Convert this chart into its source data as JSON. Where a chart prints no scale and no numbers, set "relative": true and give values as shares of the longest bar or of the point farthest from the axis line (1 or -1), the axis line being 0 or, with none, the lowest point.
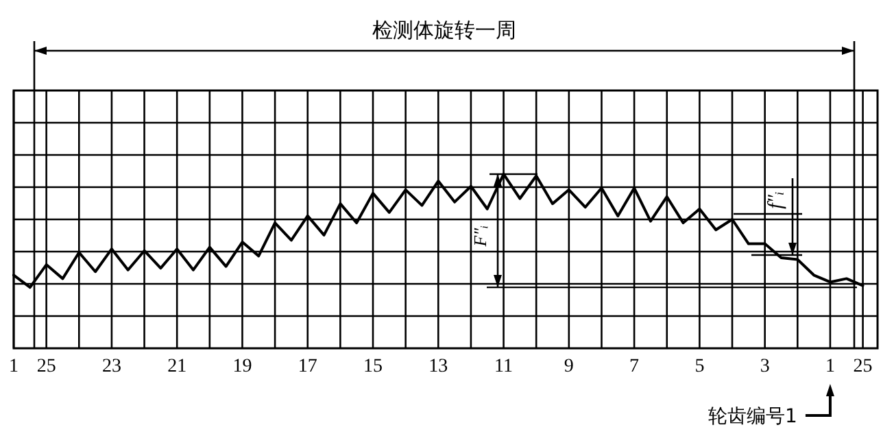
{
  "chart_data": {
    "type": "line",
    "relative": true,
    "categories": [
      "1",
      null,
      "25",
      null,
      null,
      null,
      "23",
      null,
      null,
      null,
      "21",
      null,
      null,
      null,
      "19",
      null,
      null,
      null,
      "17",
      null,
      null,
      null,
      "15",
      null,
      null,
      null,
      "13",
      null,
      null,
      null,
      "11",
      null,
      null,
      null,
      "9",
      null,
      null,
      null,
      "7",
      null,
      null,
      null,
      "5",
      null,
      null,
      null,
      "3",
      null,
      null,
      null,
      "1",
      null,
      "25"
    ],
    "grid": true,
    "series": [
      {
        "color": "#000000",
        "values": [
          0.42,
          0.35,
          0.48,
          0.4,
          0.55,
          0.44,
          0.57,
          0.45,
          0.56,
          0.46,
          0.57,
          0.45,
          0.58,
          0.47,
          0.61,
          0.53,
          0.72,
          0.62,
          0.76,
          0.65,
          0.83,
          0.72,
          0.89,
          0.78,
          0.91,
          0.82,
          0.96,
          0.84,
          0.93,
          0.8,
          1.0,
          0.86,
          0.99,
          0.83,
          0.91,
          0.81,
          0.92,
          0.76,
          0.92,
          0.73,
          0.87,
          0.72,
          0.8,
          0.68,
          0.74,
          0.6,
          0.6,
          0.52,
          0.51,
          0.42,
          0.38,
          0.4,
          0.36
        ]
      }
    ],
    "ref_lines": [
      {
        "axis": "y",
        "value": 0.35
      }
    ],
    "annotations": [
      "检测体旋转一周",
      "F″ᵢ",
      "f″ᵢ",
      "轮齿编号1"
    ]
  }
}
